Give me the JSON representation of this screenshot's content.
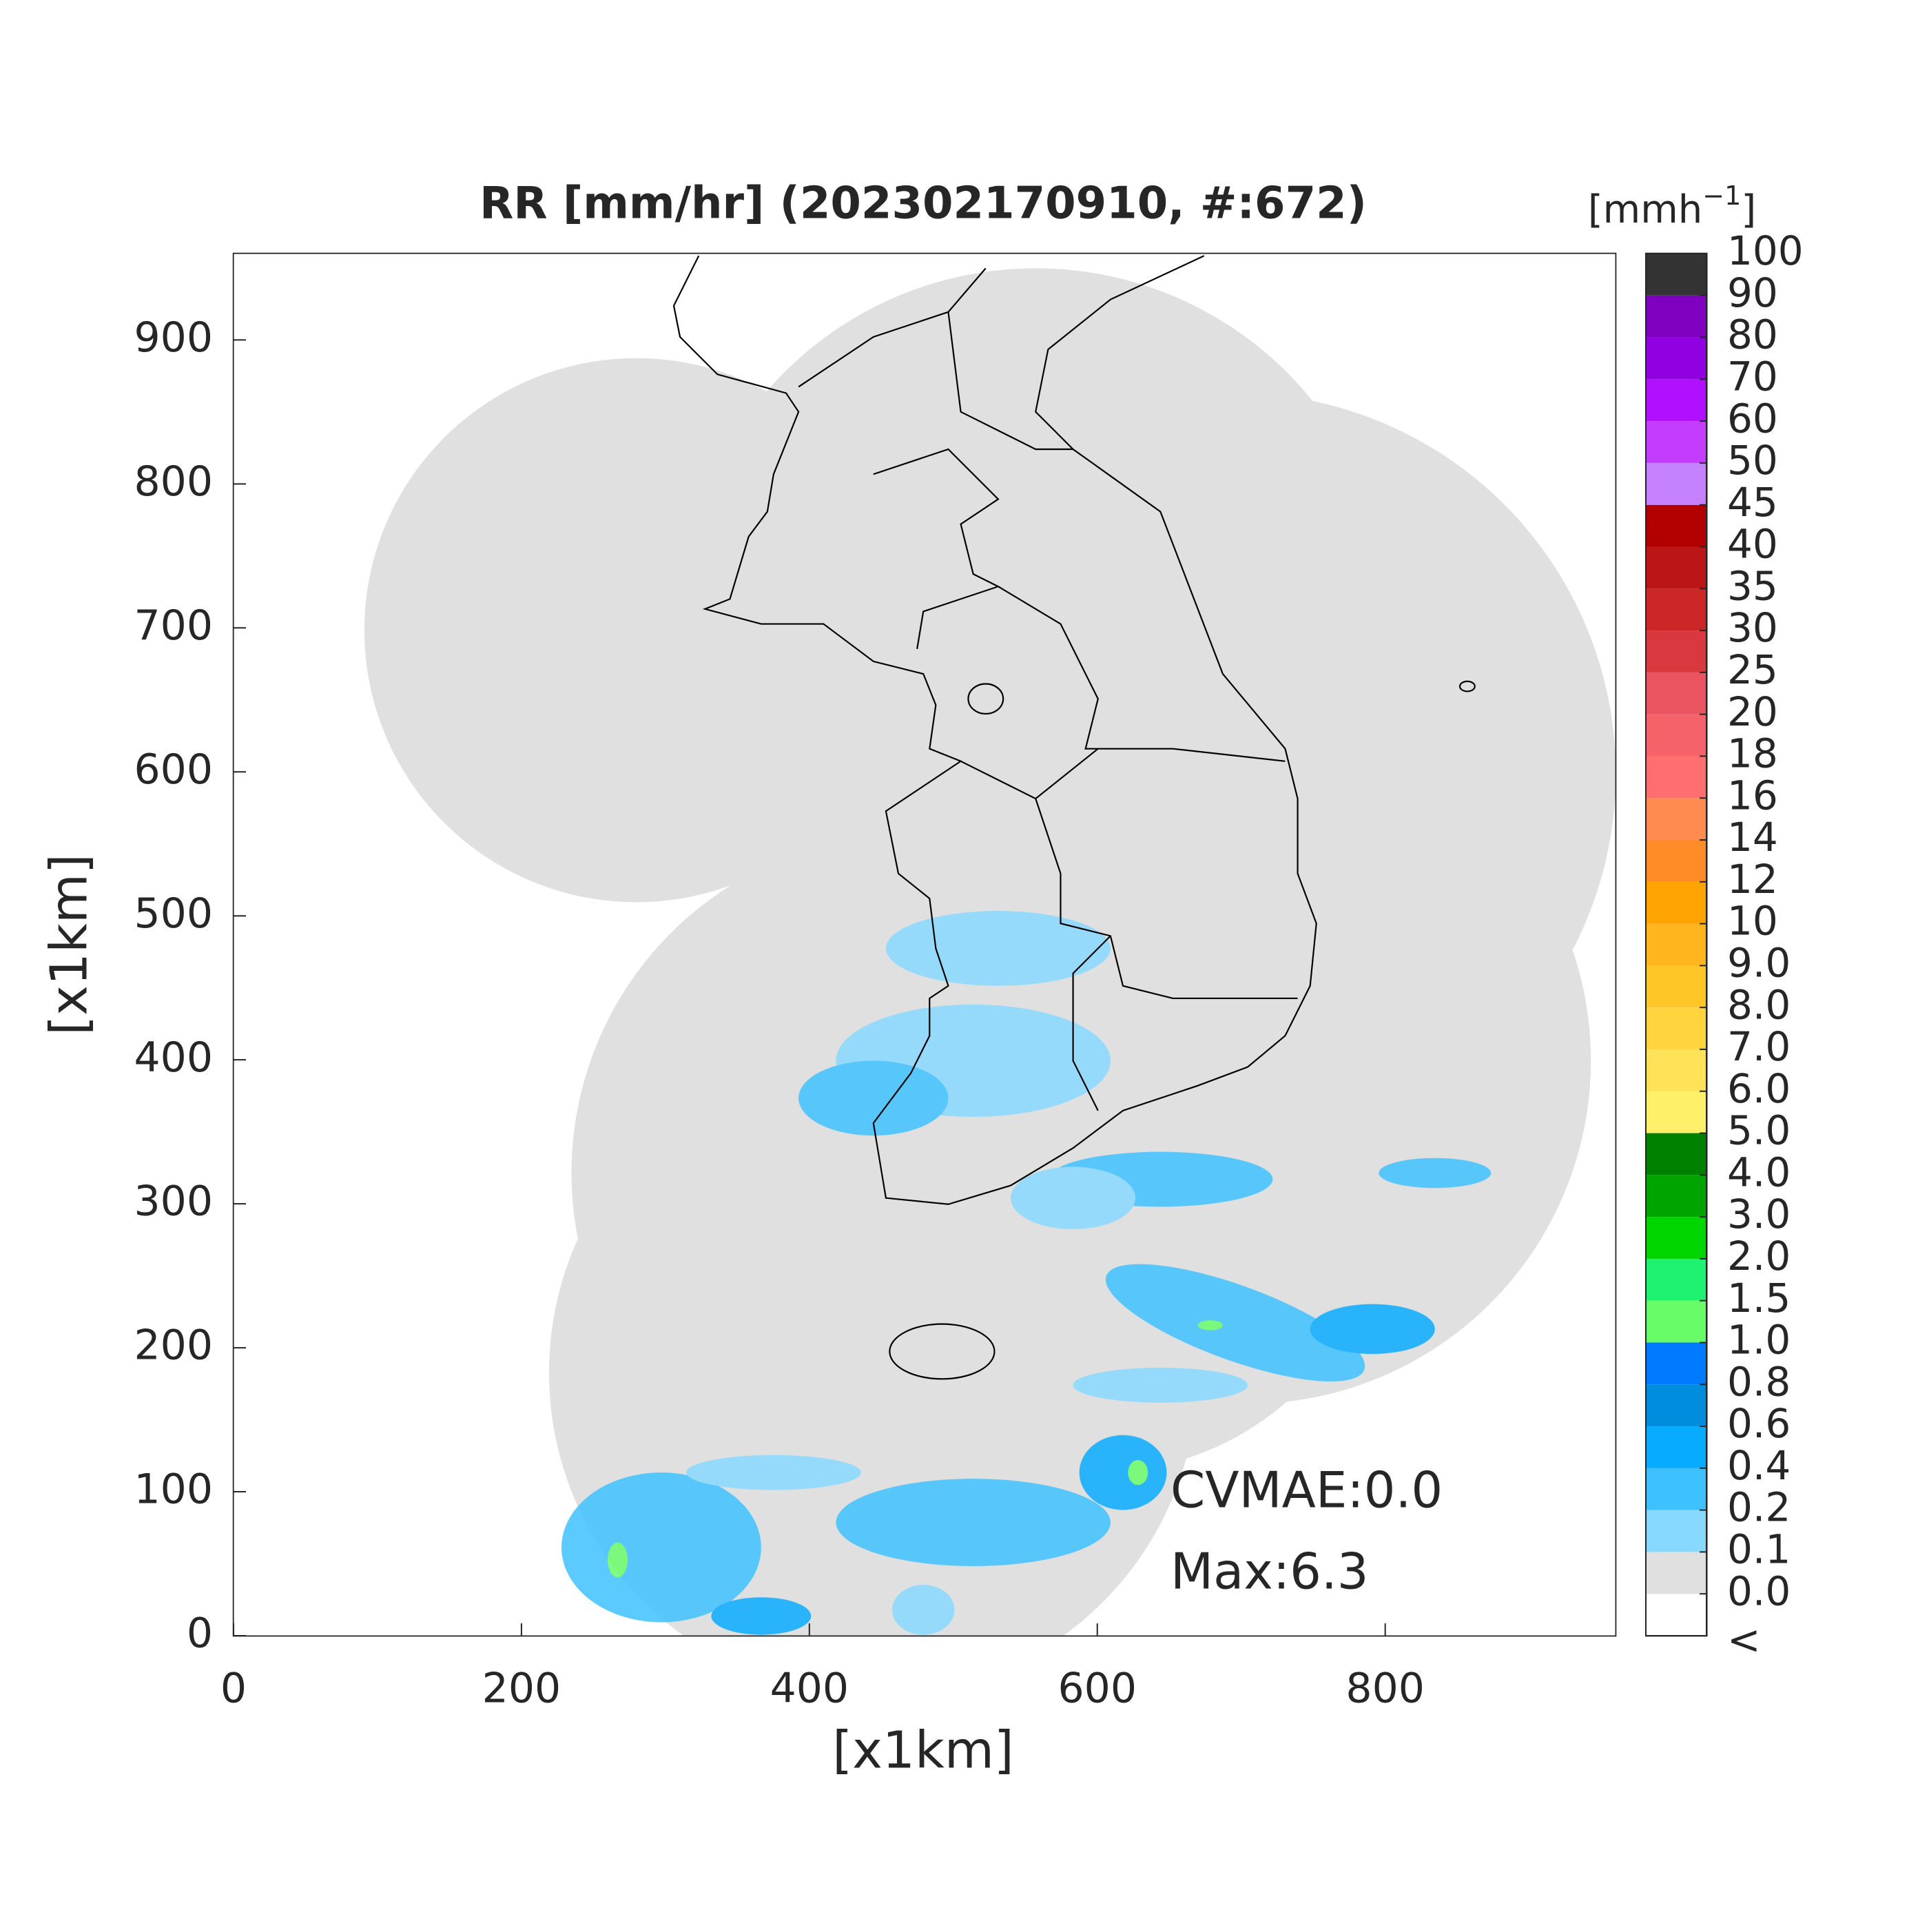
{
  "chart_data": {
    "type": "map",
    "title": "RR [mm/hr] (202302170910, #:672)",
    "x_label": "[x1km]",
    "y_label": "[x1km]",
    "xlim": [
      0,
      960
    ],
    "ylim": [
      0,
      960
    ],
    "xticks": [
      0,
      200,
      400,
      600,
      800
    ],
    "yticks": [
      0,
      100,
      200,
      300,
      400,
      500,
      600,
      700,
      800,
      900
    ],
    "annotations": [
      "CVMAE:0.0",
      "Max:6.3"
    ],
    "colorbar": {
      "unit": "[mmh",
      "unit_exponent": "−1",
      "unit_close": "]",
      "below_label": "<",
      "ticks": [
        {
          "value": 0,
          "label": "0.0"
        },
        0.1,
        0.2,
        0.4,
        0.6,
        0.8,
        {
          "value": 1,
          "label": "1.0"
        },
        1.5,
        {
          "value": 2,
          "label": "2.0"
        },
        {
          "value": 3,
          "label": "3.0"
        },
        {
          "value": 4,
          "label": "4.0"
        },
        {
          "value": 5,
          "label": "5.0"
        },
        {
          "value": 6,
          "label": "6.0"
        },
        {
          "value": 7,
          "label": "7.0"
        },
        {
          "value": 8,
          "label": "8.0"
        },
        {
          "value": 9,
          "label": "9.0"
        },
        10,
        12,
        14,
        16,
        18,
        20,
        25,
        30,
        35,
        40,
        45,
        50,
        60,
        70,
        80,
        90,
        100
      ],
      "colors": [
        "#ffffff",
        "#e0e0e0",
        "#87d9ff",
        "#3ec1ff",
        "#07abff",
        "#008dde",
        "#007bff",
        "#69fc69",
        "#1ef270",
        "#00d500",
        "#00a400",
        "#008000",
        "#fff06a",
        "#ffe258",
        "#ffd43c",
        "#ffc627",
        "#ffb51d",
        "#ffa400",
        "#ff8c26",
        "#ff8b50",
        "#ff6f6f",
        "#f5626a",
        "#ea5460",
        "#d9383f",
        "#cc2626",
        "#bb1515",
        "#b30000",
        "#c581ff",
        "#c43dff",
        "#b10fff",
        "#9000e0",
        "#7f00bf",
        "#333333"
      ]
    }
  }
}
